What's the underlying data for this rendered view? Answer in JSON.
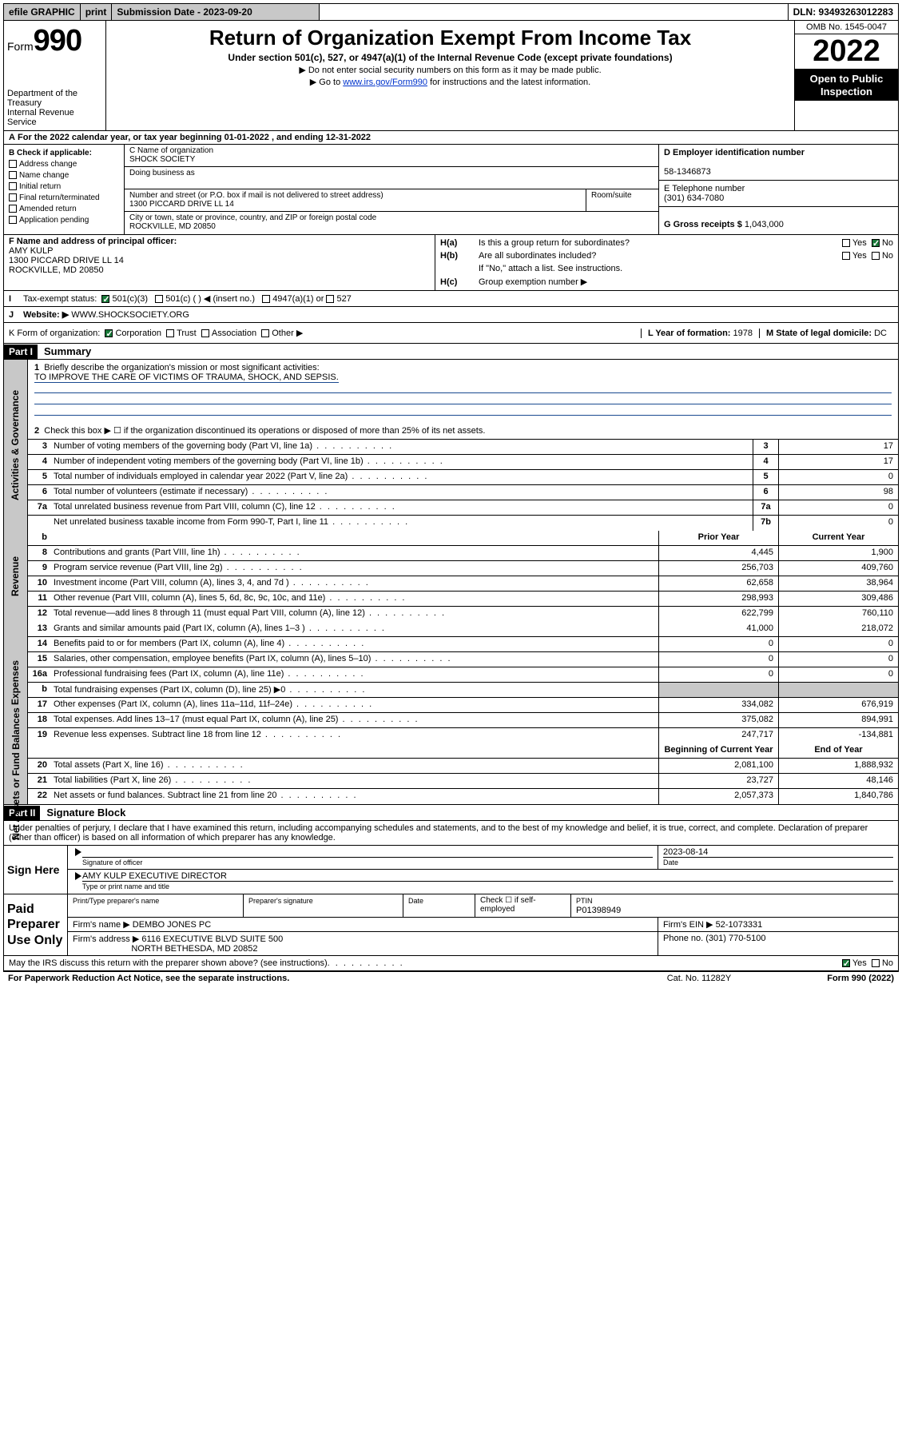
{
  "topbar": {
    "efile": "efile GRAPHIC",
    "print": "print",
    "subdate_lbl": "Submission Date - 2023-09-20",
    "dln": "DLN: 93493263012283"
  },
  "header": {
    "form": "Form",
    "num": "990",
    "dept": "Department of the Treasury",
    "irs": "Internal Revenue Service",
    "title": "Return of Organization Exempt From Income Tax",
    "sub1": "Under section 501(c), 527, or 4947(a)(1) of the Internal Revenue Code (except private foundations)",
    "sub2": "▶ Do not enter social security numbers on this form as it may be made public.",
    "sub3a": "▶ Go to ",
    "sub3link": "www.irs.gov/Form990",
    "sub3b": " for instructions and the latest information.",
    "omb": "OMB No. 1545-0047",
    "year": "2022",
    "inspect1": "Open to Public",
    "inspect2": "Inspection"
  },
  "line_a": "For the 2022 calendar year, or tax year beginning 01-01-2022    , and ending 12-31-2022",
  "check_b": {
    "hdr": "B Check if applicable:",
    "items": [
      "Address change",
      "Name change",
      "Initial return",
      "Final return/terminated",
      "Amended return",
      "Application pending"
    ]
  },
  "block_c": {
    "name_lbl": "C Name of organization",
    "name": "SHOCK SOCIETY",
    "dba_lbl": "Doing business as",
    "dba": "",
    "addr_lbl": "Number and street (or P.O. box if mail is not delivered to street address)",
    "room_lbl": "Room/suite",
    "addr": "1300 PICCARD DRIVE LL 14",
    "city_lbl": "City or town, state or province, country, and ZIP or foreign postal code",
    "city": "ROCKVILLE, MD  20850"
  },
  "block_r": {
    "d_lbl": "D Employer identification number",
    "d_val": "58-1346873",
    "e_lbl": "E Telephone number",
    "e_val": "(301) 634-7080",
    "g_lbl": "G Gross receipts $",
    "g_val": "1,043,000"
  },
  "block_f": {
    "lbl": "F  Name and address of principal officer:",
    "name": "AMY KULP",
    "addr1": "1300 PICCARD DRIVE LL 14",
    "addr2": "ROCKVILLE, MD  20850"
  },
  "block_h": {
    "a": "Is this a group return for subordinates?",
    "a_yes": "Yes",
    "a_no": "No",
    "b": "Are all subordinates included?",
    "b_yes": "Yes",
    "b_no": "No",
    "b_note": "If \"No,\" attach a list. See instructions.",
    "c": "Group exemption number ▶"
  },
  "line_i": {
    "lbl": "Tax-exempt status:",
    "o1": "501(c)(3)",
    "o2": "501(c) (  ) ◀ (insert no.)",
    "o3": "4947(a)(1) or",
    "o4": "527"
  },
  "line_j": {
    "lbl": "Website: ▶",
    "val": "WWW.SHOCKSOCIETY.ORG"
  },
  "line_k": {
    "lbl": "K Form of organization:",
    "o1": "Corporation",
    "o2": "Trust",
    "o3": "Association",
    "o4": "Other ▶"
  },
  "line_l": {
    "lbl": "L Year of formation:",
    "val": "1978"
  },
  "line_m": {
    "lbl": "M State of legal domicile:",
    "val": "DC"
  },
  "part1": {
    "hdr": "Part I",
    "title": "Summary",
    "q1": "Briefly describe the organization's mission or most significant activities:",
    "q1_ans": "TO IMPROVE THE CARE OF VICTIMS OF TRAUMA, SHOCK, AND SEPSIS.",
    "q2": "Check this box ▶ ☐  if the organization discontinued its operations or disposed of more than 25% of its net assets.",
    "side_a": "Activities & Governance",
    "side_r": "Revenue",
    "side_e": "Expenses",
    "side_n": "Net Assets or Fund Balances",
    "col_py": "Prior Year",
    "col_cy": "Current Year",
    "col_bcy": "Beginning of Current Year",
    "col_eoy": "End of Year",
    "rows_gov": [
      {
        "n": "3",
        "t": "Number of voting members of the governing body (Part VI, line 1a)",
        "c": "3",
        "v": "17"
      },
      {
        "n": "4",
        "t": "Number of independent voting members of the governing body (Part VI, line 1b)",
        "c": "4",
        "v": "17"
      },
      {
        "n": "5",
        "t": "Total number of individuals employed in calendar year 2022 (Part V, line 2a)",
        "c": "5",
        "v": "0"
      },
      {
        "n": "6",
        "t": "Total number of volunteers (estimate if necessary)",
        "c": "6",
        "v": "98"
      },
      {
        "n": "7a",
        "t": "Total unrelated business revenue from Part VIII, column (C), line 12",
        "c": "7a",
        "v": "0"
      },
      {
        "n": "",
        "t": "Net unrelated business taxable income from Form 990-T, Part I, line 11",
        "c": "7b",
        "v": "0"
      }
    ],
    "rows_rev": [
      {
        "n": "8",
        "t": "Contributions and grants (Part VIII, line 1h)",
        "py": "4,445",
        "cy": "1,900"
      },
      {
        "n": "9",
        "t": "Program service revenue (Part VIII, line 2g)",
        "py": "256,703",
        "cy": "409,760"
      },
      {
        "n": "10",
        "t": "Investment income (Part VIII, column (A), lines 3, 4, and 7d )",
        "py": "62,658",
        "cy": "38,964"
      },
      {
        "n": "11",
        "t": "Other revenue (Part VIII, column (A), lines 5, 6d, 8c, 9c, 10c, and 11e)",
        "py": "298,993",
        "cy": "309,486"
      },
      {
        "n": "12",
        "t": "Total revenue—add lines 8 through 11 (must equal Part VIII, column (A), line 12)",
        "py": "622,799",
        "cy": "760,110"
      }
    ],
    "rows_exp": [
      {
        "n": "13",
        "t": "Grants and similar amounts paid (Part IX, column (A), lines 1–3 )",
        "py": "41,000",
        "cy": "218,072"
      },
      {
        "n": "14",
        "t": "Benefits paid to or for members (Part IX, column (A), line 4)",
        "py": "0",
        "cy": "0"
      },
      {
        "n": "15",
        "t": "Salaries, other compensation, employee benefits (Part IX, column (A), lines 5–10)",
        "py": "0",
        "cy": "0"
      },
      {
        "n": "16a",
        "t": "Professional fundraising fees (Part IX, column (A), line 11e)",
        "py": "0",
        "cy": "0"
      },
      {
        "n": "b",
        "t": "Total fundraising expenses (Part IX, column (D), line 25) ▶0",
        "py": "",
        "cy": "",
        "grey": true
      },
      {
        "n": "17",
        "t": "Other expenses (Part IX, column (A), lines 11a–11d, 11f–24e)",
        "py": "334,082",
        "cy": "676,919"
      },
      {
        "n": "18",
        "t": "Total expenses. Add lines 13–17 (must equal Part IX, column (A), line 25)",
        "py": "375,082",
        "cy": "894,991"
      },
      {
        "n": "19",
        "t": "Revenue less expenses. Subtract line 18 from line 12",
        "py": "247,717",
        "cy": "-134,881"
      }
    ],
    "rows_net": [
      {
        "n": "20",
        "t": "Total assets (Part X, line 16)",
        "py": "2,081,100",
        "cy": "1,888,932"
      },
      {
        "n": "21",
        "t": "Total liabilities (Part X, line 26)",
        "py": "23,727",
        "cy": "48,146"
      },
      {
        "n": "22",
        "t": "Net assets or fund balances. Subtract line 21 from line 20",
        "py": "2,057,373",
        "cy": "1,840,786"
      }
    ]
  },
  "part2": {
    "hdr": "Part II",
    "title": "Signature Block",
    "decl": "Under penalties of perjury, I declare that I have examined this return, including accompanying schedules and statements, and to the best of my knowledge and belief, it is true, correct, and complete. Declaration of preparer (other than officer) is based on all information of which preparer has any knowledge.",
    "sign_here": "Sign Here",
    "sig_of": "Signature of officer",
    "date_lbl": "Date",
    "date_val": "2023-08-14",
    "name_title": "AMY KULP  EXECUTIVE DIRECTOR",
    "type_lbl": "Type or print name and title",
    "paid": "Paid Preparer Use Only",
    "p_name_lbl": "Print/Type preparer's name",
    "p_sig_lbl": "Preparer's signature",
    "p_date_lbl": "Date",
    "p_check": "Check ☐ if self-employed",
    "ptin_lbl": "PTIN",
    "ptin": "P01398949",
    "firm_name_lbl": "Firm's name    ▶",
    "firm_name": "DEMBO JONES PC",
    "firm_ein_lbl": "Firm's EIN ▶",
    "firm_ein": "52-1073331",
    "firm_addr_lbl": "Firm's address ▶",
    "firm_addr1": "6116 EXECUTIVE BLVD SUITE 500",
    "firm_addr2": "NORTH BETHESDA, MD  20852",
    "phone_lbl": "Phone no.",
    "phone": "(301) 770-5100",
    "discuss": "May the IRS discuss this return with the preparer shown above? (see instructions)",
    "d_yes": "Yes",
    "d_no": "No"
  },
  "footer": {
    "l": "For Paperwork Reduction Act Notice, see the separate instructions.",
    "m": "Cat. No. 11282Y",
    "r": "Form 990 (2022)"
  }
}
